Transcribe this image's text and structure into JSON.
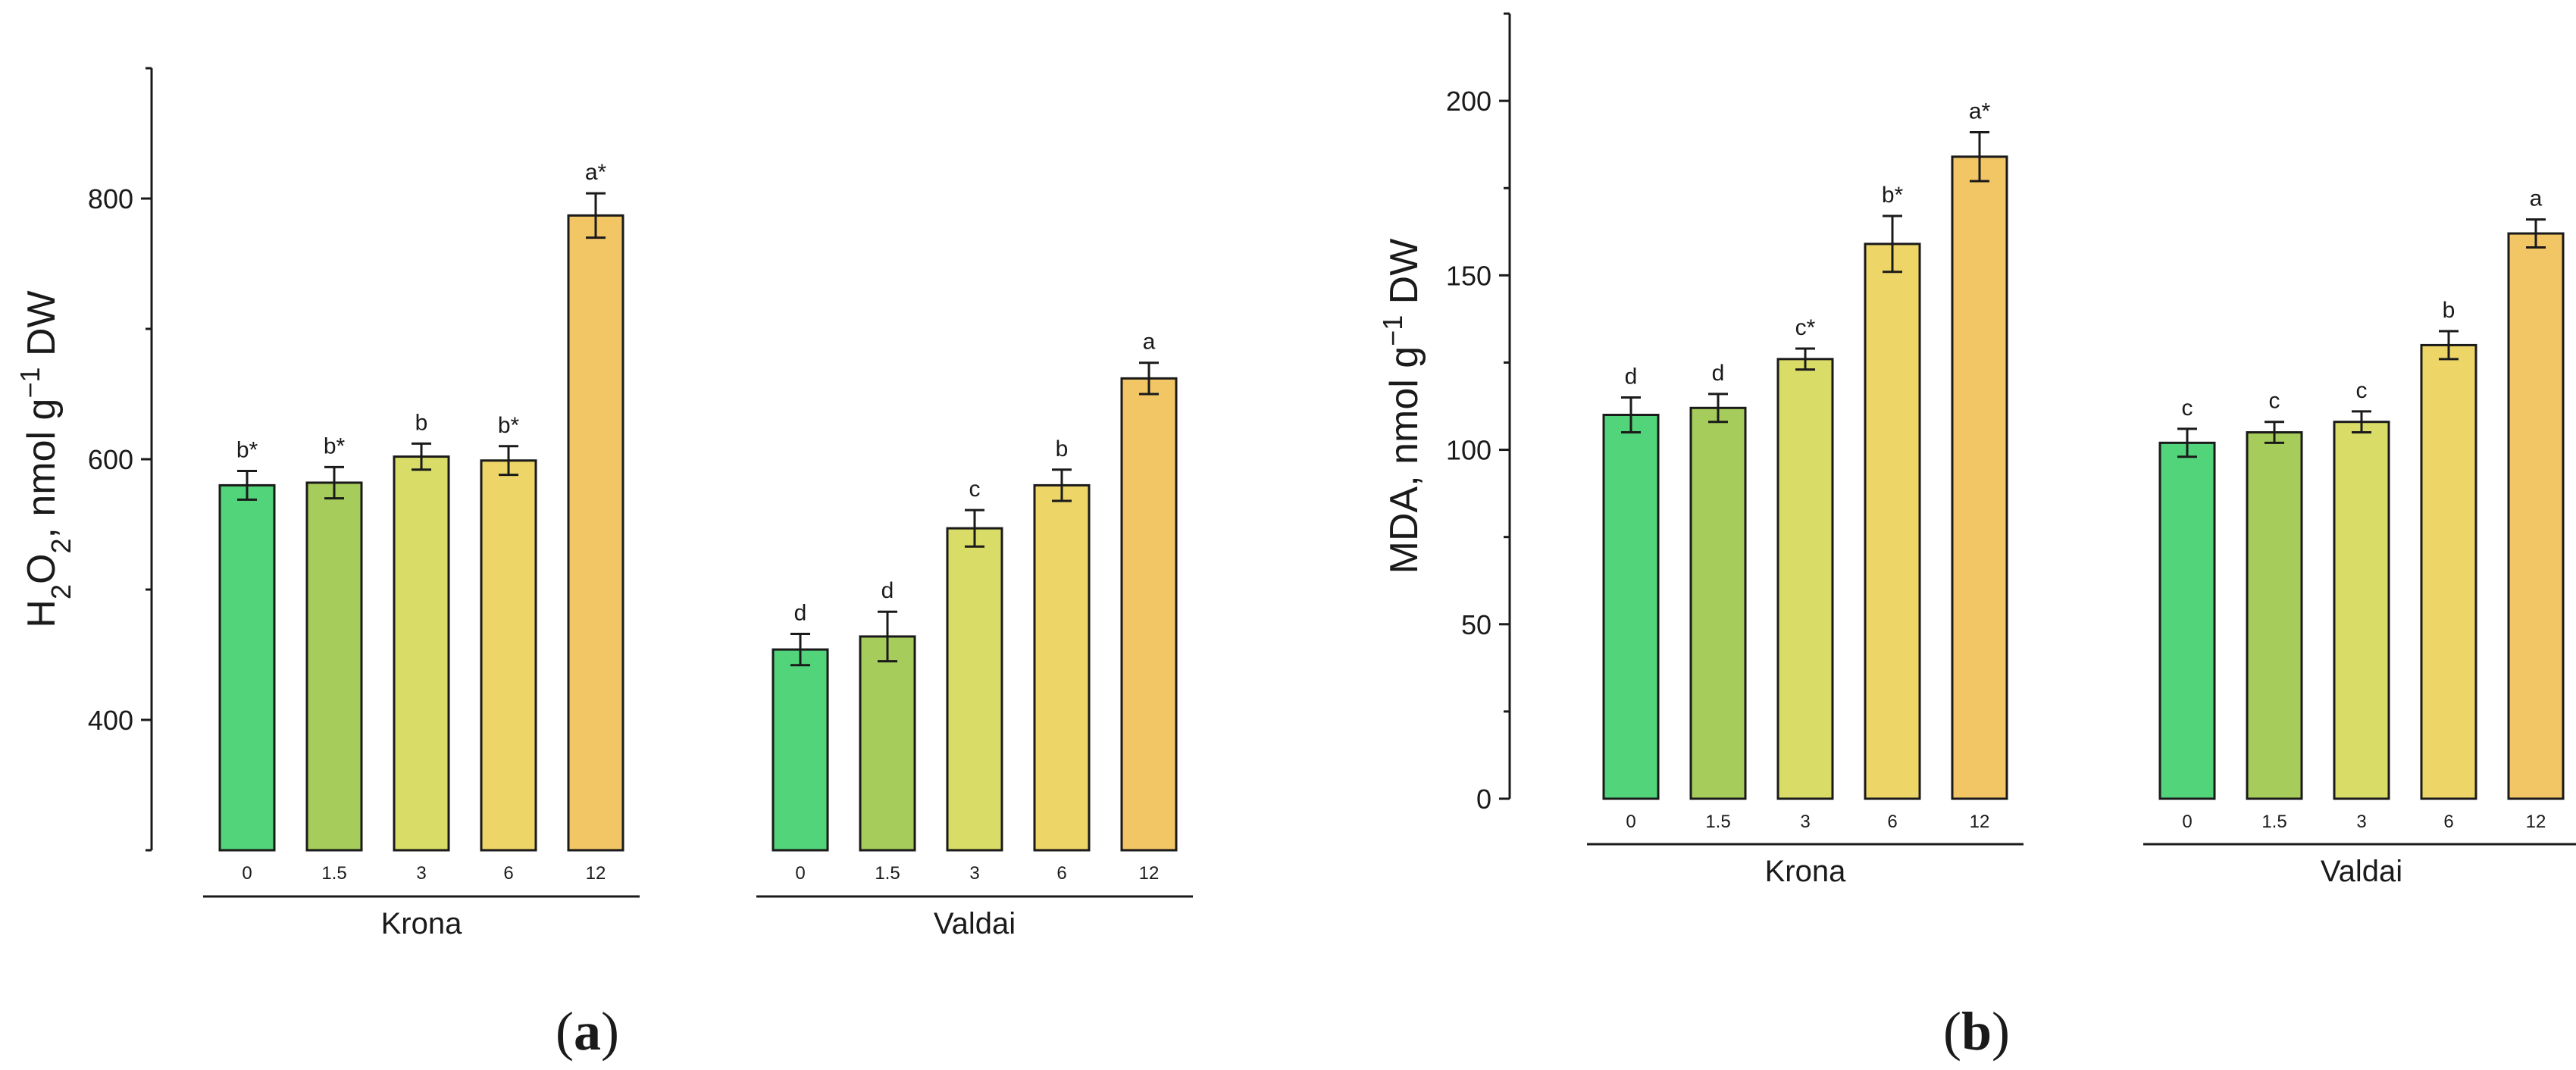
{
  "colors": {
    "dose_0": "#52d57a",
    "dose_1_5": "#a6cc5b",
    "dose_3": "#d9dc66",
    "dose_6": "#eed567",
    "dose_12": "#f2c665",
    "stroke": "#1a1a1a"
  },
  "chart_data": [
    {
      "type": "bar",
      "panel": "a",
      "panel_label": "a",
      "ylabel": {
        "base": "H",
        "sub1": "2",
        "mid": "O",
        "sub2": "2",
        "tail": ", nmol g",
        "sup": "−1",
        "end": " DW"
      },
      "ylim": [
        300,
        900
      ],
      "yticks": [
        400,
        600,
        800
      ],
      "yminor": [
        300,
        500,
        700,
        900
      ],
      "categories": [
        "0",
        "1.5",
        "3",
        "6",
        "12"
      ],
      "groups": [
        {
          "name": "Krona",
          "values": [
            580,
            582,
            602,
            599,
            787
          ],
          "errors": [
            11,
            12,
            10,
            11,
            17
          ],
          "labels": [
            "b*",
            "b*",
            "b",
            "b*",
            "a*"
          ]
        },
        {
          "name": "Valdai",
          "values": [
            454,
            464,
            547,
            580,
            662
          ],
          "errors": [
            12,
            19,
            14,
            12,
            12
          ],
          "labels": [
            "d",
            "d",
            "c",
            "b",
            "a"
          ]
        }
      ]
    },
    {
      "type": "bar",
      "panel": "b",
      "panel_label": "b",
      "ylabel": {
        "base": "MDA, nmol g",
        "sup": "−1",
        "end": " DW"
      },
      "ylim": [
        0,
        225
      ],
      "yticks": [
        0,
        50,
        100,
        150,
        200
      ],
      "yminor": [
        25,
        75,
        125,
        175,
        225
      ],
      "categories": [
        "0",
        "1.5",
        "3",
        "6",
        "12"
      ],
      "groups": [
        {
          "name": "Krona",
          "values": [
            110,
            112,
            126,
            159,
            184
          ],
          "errors": [
            5,
            4,
            3,
            8,
            7
          ],
          "labels": [
            "d",
            "d",
            "c*",
            "b*",
            "a*"
          ]
        },
        {
          "name": "Valdai",
          "values": [
            102,
            105,
            108,
            130,
            162
          ],
          "errors": [
            4,
            3,
            3,
            4,
            4
          ],
          "labels": [
            "c",
            "c",
            "c",
            "b",
            "a"
          ]
        }
      ]
    }
  ]
}
